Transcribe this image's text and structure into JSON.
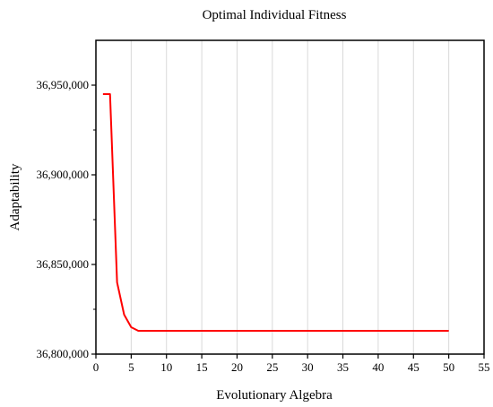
{
  "chart_data": {
    "type": "line",
    "title": "Optimal Individual Fitness",
    "xlabel": "Evolutionary Algebra",
    "ylabel": "Adaptability",
    "xlim": [
      0,
      55
    ],
    "ylim": [
      36800000,
      36975000
    ],
    "xticks": [
      0,
      5,
      10,
      15,
      20,
      25,
      30,
      35,
      40,
      45,
      50,
      55
    ],
    "xtick_labels": [
      "0",
      "5",
      "10",
      "15",
      "20",
      "25",
      "30",
      "35",
      "40",
      "45",
      "50",
      "55"
    ],
    "yticks": [
      36800000,
      36850000,
      36900000,
      36950000
    ],
    "ytick_labels": [
      "36,800,000",
      "36,850,000",
      "36,900,000",
      "36,950,000"
    ],
    "grid": "vertical",
    "series": [
      {
        "color": "#ff0000",
        "x": [
          1,
          2,
          3,
          4,
          5,
          6,
          7,
          10,
          15,
          20,
          25,
          30,
          35,
          40,
          45,
          50
        ],
        "y": [
          36945000,
          36945000,
          36840000,
          36822000,
          36815000,
          36813000,
          36813000,
          36813000,
          36813000,
          36813000,
          36813000,
          36813000,
          36813000,
          36813000,
          36813000,
          36813000
        ]
      }
    ]
  }
}
